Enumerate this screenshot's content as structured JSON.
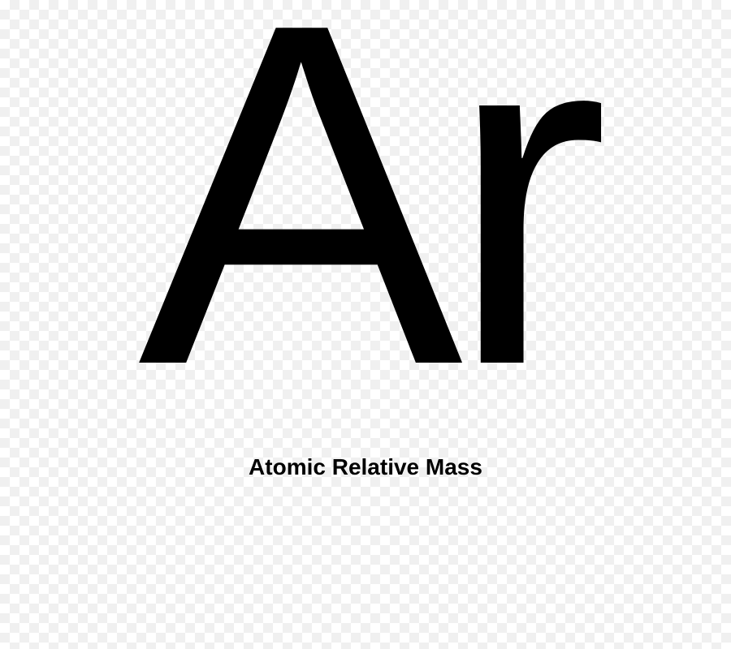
{
  "element": {
    "symbol": "Ar",
    "caption": "Atomic Relative Mass"
  },
  "styling": {
    "symbol_fontsize": 600,
    "symbol_color": "#000000",
    "caption_fontsize": 28,
    "caption_color": "#000000",
    "background_color": "#ffffff",
    "checker_color": "#f0f0f0",
    "checker_size": 24
  }
}
